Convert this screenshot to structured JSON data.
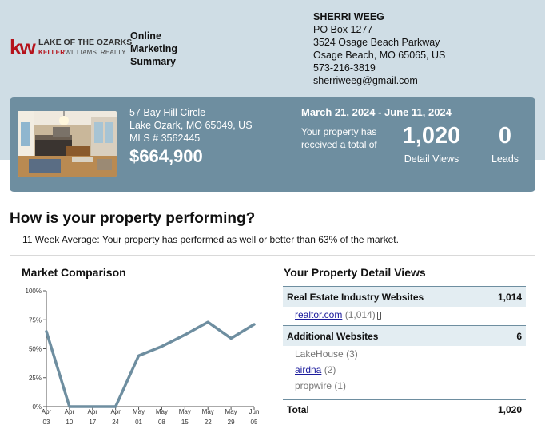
{
  "logo": {
    "mark": "kw",
    "line1": "LAKE OF THE OZARKS",
    "line2_a": "KELLER",
    "line2_b": "WILLIAMS",
    "line2_c": ". REALTY"
  },
  "summary_title": [
    "Online",
    "Marketing",
    "Summary"
  ],
  "agent": {
    "name": "SHERRI WEEG",
    "lines": [
      "PO Box 1277",
      "3524 Osage Beach Parkway",
      "Osage Beach, MO 65065, US",
      "573-216-3819",
      "sherriweeg@gmail.com"
    ]
  },
  "property": {
    "street": "57 Bay Hill Circle",
    "city": "Lake Ozark, MO 65049, US",
    "mls": "MLS # 3562445",
    "price": "$664,900",
    "date_range": "March 21, 2024 - June 11, 2024",
    "received_text": "Your property has received a total of",
    "views_value": "1,020",
    "views_label": "Detail Views",
    "leads_value": "0",
    "leads_label": "Leads"
  },
  "performance": {
    "heading": "How is your property performing?",
    "subtext": "11 Week Average: Your property has performed as well or better than 63% of the market."
  },
  "market_comparison": {
    "title": "Market Comparison"
  },
  "chart_data": {
    "type": "line",
    "title": "Market Comparison",
    "x_top": [
      "Apr",
      "Apr",
      "Apr",
      "Apr",
      "May",
      "May",
      "May",
      "May",
      "May",
      "Jun"
    ],
    "x_bottom": [
      "03",
      "10",
      "17",
      "24",
      "01",
      "08",
      "15",
      "22",
      "29",
      "05"
    ],
    "y_ticks": [
      "100%",
      "75%",
      "50%",
      "25%",
      "0%"
    ],
    "ylim": [
      0,
      100
    ],
    "series": [
      {
        "values": [
          65,
          0,
          0,
          0,
          44,
          52,
          62,
          73,
          59,
          71
        ]
      }
    ],
    "color": "#6e8ea0"
  },
  "detail_views": {
    "title": "Your Property Detail Views",
    "industry_label": "Real Estate Industry Websites",
    "industry_total": "1,014",
    "industry_items": [
      {
        "name": "realtor.com",
        "count": "(1,014)",
        "link": true,
        "mobile_icon": true
      }
    ],
    "additional_label": "Additional Websites",
    "additional_total": "6",
    "additional_items": [
      {
        "name": "LakeHouse",
        "count": "(3)",
        "link": false
      },
      {
        "name": "airdna",
        "count": "(2)",
        "link": true
      },
      {
        "name": "propwire",
        "count": "(1)",
        "link": false
      }
    ],
    "total_label": "Total",
    "total_value": "1,020"
  }
}
